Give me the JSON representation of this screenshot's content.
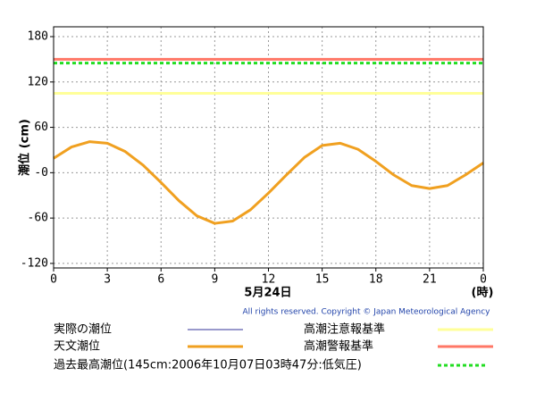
{
  "chart_data": {
    "type": "line",
    "y_label": "潮位 (cm)",
    "x_label": "5月24日",
    "x_unit": "(時)",
    "copyright": "All rights reserved. Copyright © Japan Meteorological Agency",
    "x": [
      0,
      1,
      2,
      3,
      4,
      5,
      6,
      7,
      8,
      9,
      10,
      11,
      12,
      13,
      14,
      15,
      16,
      17,
      18,
      19,
      20,
      21,
      22,
      23,
      24
    ],
    "series": [
      {
        "name": "実際の潮位",
        "color": "#333399",
        "values": [
          null,
          null,
          null,
          null,
          null,
          null,
          null,
          null,
          null,
          null,
          null,
          null,
          null,
          null,
          null,
          null,
          null,
          null,
          null,
          null,
          null,
          null,
          null,
          null,
          null
        ]
      },
      {
        "name": "天文潮位",
        "color": "#f0a020",
        "values": [
          19,
          34,
          41,
          39,
          28,
          10,
          -13,
          -37,
          -57,
          -67,
          -64,
          -49,
          -27,
          -3,
          20,
          36,
          39,
          31,
          15,
          -3,
          -17,
          -21,
          -17,
          -3,
          13
        ]
      }
    ],
    "reference_lines": [
      {
        "name": "高潮注意報基準",
        "value": 105,
        "color": "#ffff99",
        "dashed": false
      },
      {
        "name": "高潮警報基準",
        "value": 150,
        "color": "#ff7766",
        "dashed": false
      },
      {
        "name": "過去最高潮位(145cm:2006年10月07日03時47分:低気圧)",
        "value": 145,
        "color": "#22dd22",
        "dashed": true
      }
    ],
    "xlim": [
      0,
      24
    ],
    "xticks": [
      0,
      3,
      6,
      9,
      12,
      15,
      18,
      21,
      {
        "value": 24,
        "label": "0"
      }
    ],
    "ylim": [
      -126,
      193
    ],
    "yticks": [
      -120,
      -60,
      {
        "value": 0,
        "label": "-0"
      },
      60,
      120,
      180
    ],
    "grid": true
  }
}
